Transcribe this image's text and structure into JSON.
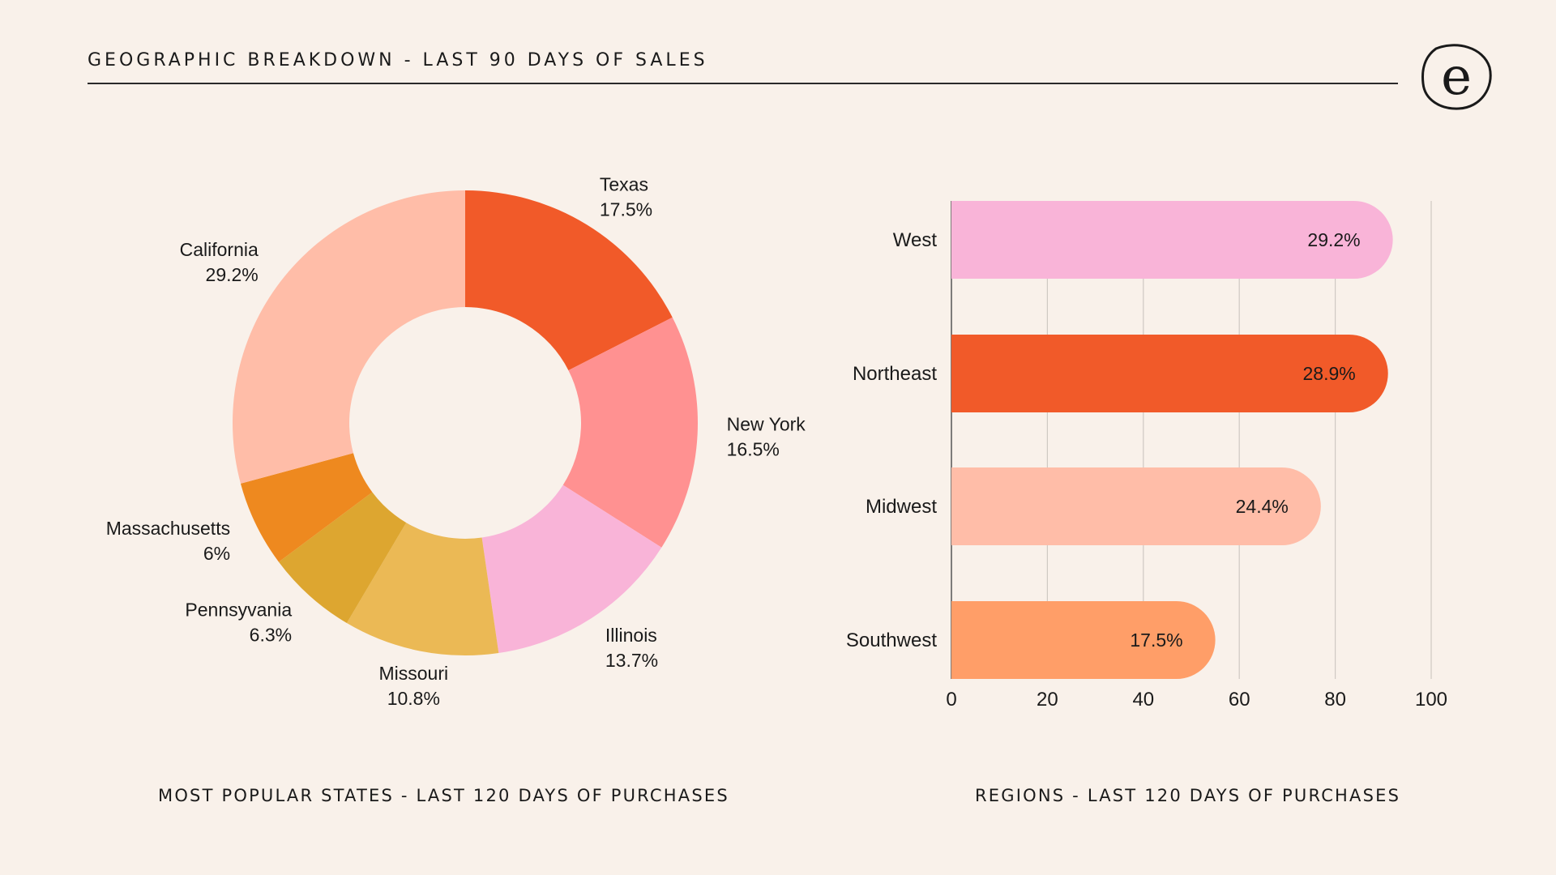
{
  "header": {
    "title": "GEOGRAPHIC BREAKDOWN - LAST 90 DAYS OF SALES",
    "logo_letter": "e"
  },
  "colors": {
    "background": "#f9f1ea",
    "text": "#1a1a1a"
  },
  "chart_data": [
    {
      "type": "pie",
      "subtype": "donut",
      "title": "MOST POPULAR STATES -  LAST 120 DAYS OF PURCHASES",
      "slices": [
        {
          "label": "Texas",
          "value_label": "17.5%",
          "value": 17.5,
          "color": "#f15a29"
        },
        {
          "label": "New York",
          "value_label": "16.5%",
          "value": 16.5,
          "color": "#ff9191"
        },
        {
          "label": "Illinois",
          "value_label": "13.7%",
          "value": 13.7,
          "color": "#f9b4d8"
        },
        {
          "label": "Missouri",
          "value_label": "10.8%",
          "value": 10.8,
          "color": "#ebb955"
        },
        {
          "label": "Pennsyvania",
          "value_label": "6.3%",
          "value": 6.3,
          "color": "#dda630"
        },
        {
          "label": "Massachusetts",
          "value_label": "6%",
          "value": 6,
          "color": "#ee891f"
        },
        {
          "label": "California",
          "value_label": "29.2%",
          "value": 29.2,
          "color": "#ffbda8"
        }
      ]
    },
    {
      "type": "bar",
      "orientation": "horizontal",
      "title": "REGIONS - LAST 120 DAYS OF PURCHASES",
      "categories": [
        "West",
        "Northeast",
        "Midwest",
        "Southwest"
      ],
      "values": [
        92,
        91,
        77,
        55
      ],
      "value_labels": [
        "29.2%",
        "28.9%",
        "24.4%",
        "17.5%"
      ],
      "colors": [
        "#f9b4d8",
        "#f15a29",
        "#ffbda8",
        "#ff9e68"
      ],
      "xlim": [
        0,
        100
      ],
      "xticks": [
        "0",
        "20",
        "40",
        "60",
        "80",
        "100"
      ],
      "grid": true
    }
  ]
}
